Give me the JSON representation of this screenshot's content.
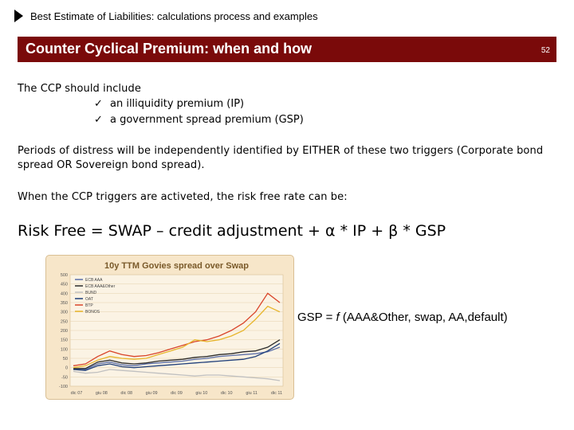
{
  "header": {
    "title": "Best Estimate of Liabilities: calculations process and examples"
  },
  "banner": {
    "title": "Counter Cyclical Premium: when and how",
    "page_number": "52"
  },
  "intro": "The CCP should include",
  "checklist": [
    {
      "icon": "checkmark-icon",
      "text": "an illiquidity premium (IP)"
    },
    {
      "icon": "checkmark-icon",
      "text": "a government spread premium (GSP)"
    }
  ],
  "paragraph1_line1": "Periods of distress will be independently identified by EITHER of these two triggers (Corporate bond",
  "paragraph1_line2": "spread OR Sovereign bond spread).",
  "paragraph2": "When the CCP triggers are activeted, the risk free rate can be:",
  "formula": "Risk Free = SWAP – credit adjustment + α * IP + β *  GSP",
  "gsp_definition": {
    "prefix": "GSP = ",
    "func": "f",
    "args": " (AAA&Other, swap, AA,default)"
  },
  "chart_data": {
    "type": "line",
    "title": "10y TTM Govies spread over Swap",
    "ylim": [
      -100,
      500
    ],
    "y_ticks": [
      "500",
      "450",
      "400",
      "350",
      "300",
      "250",
      "200",
      "150",
      "100",
      "50",
      "0",
      "-50",
      "-100"
    ],
    "x_ticks": [
      "dic 07",
      "giu 08",
      "dic 08",
      "giu 09",
      "dic 09",
      "giu 10",
      "dic 10",
      "giu 11",
      "dic 11"
    ],
    "grid": true,
    "legend_placement": "top-left",
    "series": [
      {
        "name": "ECB AAA",
        "color": "#5b6fa8",
        "values": [
          -5,
          -10,
          20,
          30,
          15,
          10,
          20,
          25,
          30,
          35,
          45,
          50,
          60,
          65,
          70,
          75,
          85,
          110
        ]
      },
      {
        "name": "ECB AAA&Other",
        "color": "#2b2b2b",
        "values": [
          -5,
          -5,
          30,
          40,
          25,
          20,
          25,
          35,
          40,
          45,
          55,
          60,
          70,
          75,
          85,
          90,
          110,
          150
        ]
      },
      {
        "name": "BUND",
        "color": "#c0c0c0",
        "values": [
          -20,
          -30,
          -25,
          -10,
          -15,
          -20,
          -25,
          -30,
          -35,
          -40,
          -45,
          -40,
          -40,
          -45,
          -50,
          -55,
          -60,
          -70
        ]
      },
      {
        "name": "OAT",
        "color": "#1f3f7a",
        "values": [
          -10,
          -15,
          10,
          20,
          5,
          0,
          5,
          10,
          15,
          20,
          25,
          30,
          35,
          40,
          45,
          60,
          90,
          130
        ]
      },
      {
        "name": "BTP",
        "color": "#d9452a",
        "values": [
          10,
          20,
          60,
          90,
          70,
          60,
          65,
          80,
          100,
          120,
          140,
          150,
          170,
          200,
          240,
          300,
          400,
          350
        ]
      },
      {
        "name": "BONOS",
        "color": "#e7b52c",
        "values": [
          0,
          10,
          40,
          60,
          50,
          45,
          50,
          70,
          90,
          110,
          150,
          140,
          150,
          170,
          200,
          260,
          330,
          300
        ]
      }
    ],
    "colors": {
      "banner_bg": "#7a0a0a",
      "chart_bg": "#f7e6c9"
    }
  }
}
